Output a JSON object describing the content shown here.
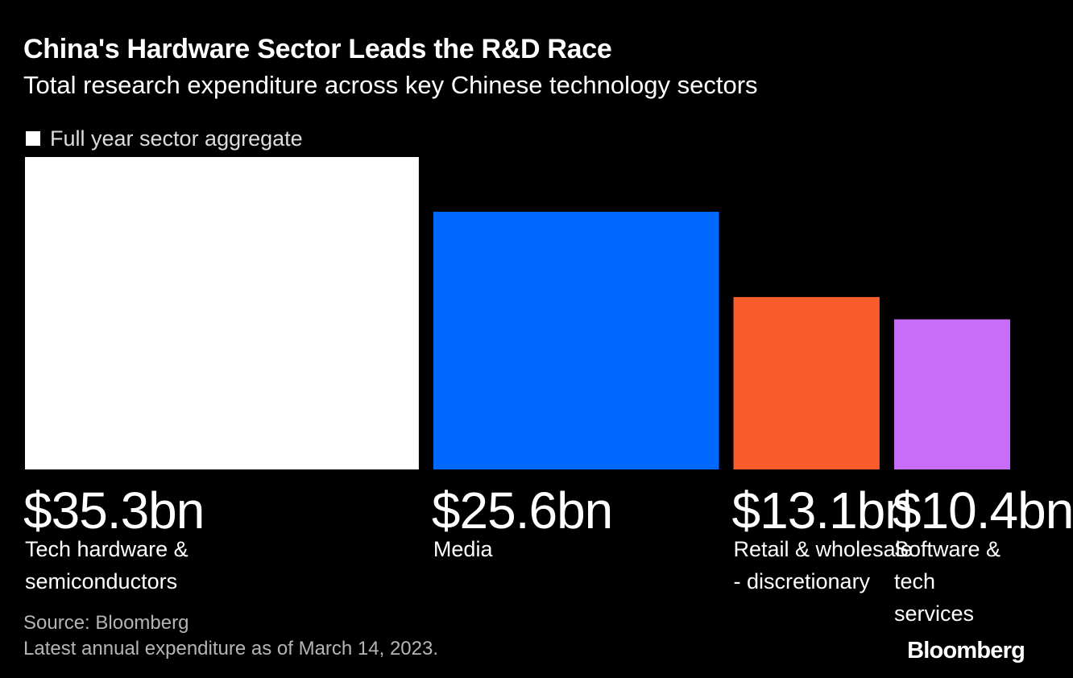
{
  "chart_data": {
    "type": "bar",
    "title": "China's Hardware Sector Leads the R&D Race",
    "subtitle": "Total research expenditure across key Chinese technology sectors",
    "legend": [
      "Full year sector aggregate"
    ],
    "xlabel": "",
    "ylabel": "",
    "unit": "$bn",
    "categories": [
      "Tech hardware & semiconductors",
      "Media",
      "Retail & wholesale - discretionary",
      "Software & tech services"
    ],
    "category_lines": [
      [
        "Tech hardware &",
        "semiconductors"
      ],
      [
        "Media"
      ],
      [
        "Retail & wholesale",
        "- discretionary"
      ],
      [
        "Software & tech",
        "services"
      ]
    ],
    "values": [
      35.3,
      25.6,
      13.1,
      10.4
    ],
    "value_labels": [
      "$35.3bn",
      "$25.6bn",
      "$13.1bn",
      "$10.4bn"
    ],
    "bar_colors": [
      "#ffffff",
      "#0068ff",
      "#fa5c2b",
      "#c86cfa"
    ],
    "bar_width_encoding": "Bar width is also scaled to value (variable-width bars)",
    "source": "Source: Bloomberg",
    "note": "Latest annual expenditure as of March 14, 2023."
  },
  "branding": {
    "logo": "Bloomberg"
  },
  "colors": {
    "background": "#000000",
    "text": "#ffffff",
    "muted": "#b5b5b5"
  }
}
